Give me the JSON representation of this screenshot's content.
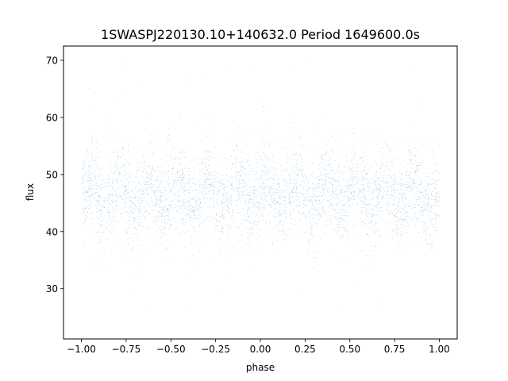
{
  "chart_data": {
    "type": "scatter",
    "title": "1SWASPJ220130.10+140632.0 Period 1649600.0s",
    "xlabel": "phase",
    "ylabel": "flux",
    "xlim": [
      -1.1,
      1.1
    ],
    "ylim": [
      21.2,
      72.5
    ],
    "xticks": [
      -1.0,
      -0.75,
      -0.5,
      -0.25,
      0.0,
      0.25,
      0.5,
      0.75,
      1.0
    ],
    "xtick_labels": [
      "−1.00",
      "−0.75",
      "−0.50",
      "−0.25",
      "0.00",
      "0.25",
      "0.50",
      "0.75",
      "1.00"
    ],
    "yticks": [
      30,
      40,
      50,
      60,
      70
    ],
    "ytick_labels": [
      "30",
      "40",
      "50",
      "60",
      "70"
    ],
    "grid": false,
    "marker_color": "#1f77b4",
    "series": [
      {
        "x_range": [
          -1.0,
          1.0
        ],
        "point_count": 60000,
        "flux_median": 46.5,
        "flux_core_range": [
          38,
          55
        ],
        "flux_full_range": [
          23.5,
          70
        ]
      }
    ]
  }
}
